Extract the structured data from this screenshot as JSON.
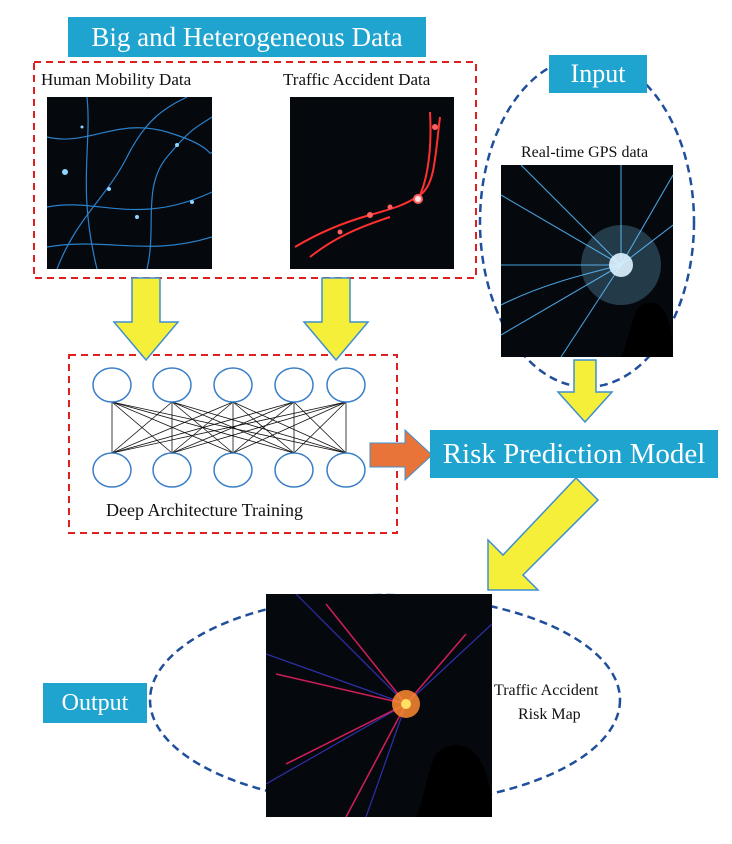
{
  "banners": {
    "big_data": "Big and Heterogeneous Data",
    "input": "Input",
    "risk_model": "Risk Prediction Model",
    "output": "Output"
  },
  "captions": {
    "human_mobility": "Human Mobility Data",
    "traffic_accident": "Traffic Accident Data",
    "realtime_gps": "Real-time GPS data",
    "deep_training": "Deep Architecture Training",
    "risk_map_line1": "Traffic Accident",
    "risk_map_line2": "Risk Map"
  },
  "colors": {
    "banner_blue": "#1fa3cf",
    "dashed_red": "#e02020",
    "dashed_blue": "#1f4f9c",
    "arrow_yellow": "#f5ef3a",
    "arrow_outline": "#3f8fd0",
    "orange_arrow": "#e8743a",
    "map_background": "#05080d"
  },
  "images": {
    "human_mobility_map": "mobility-map-image",
    "traffic_accident_map": "accident-map-image",
    "realtime_gps_map": "gps-map-image",
    "risk_map": "risk-map-image"
  },
  "network": {
    "input_nodes": 5,
    "output_nodes": 5
  }
}
